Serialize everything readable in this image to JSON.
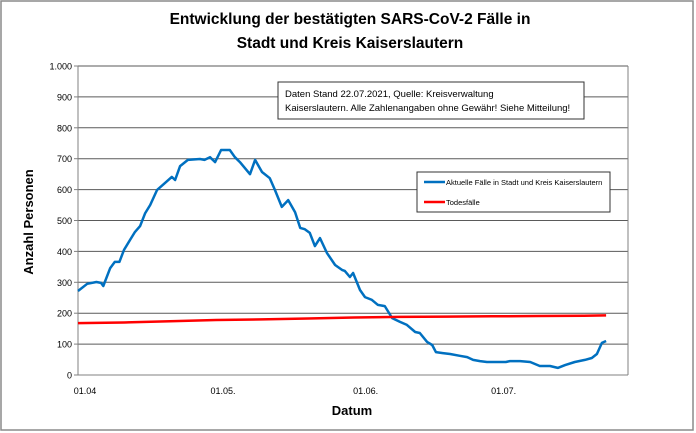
{
  "chart_data": {
    "type": "line",
    "title_line1": "Entwicklung der bestätigten SARS-CoV-2 Fälle in",
    "title_line2": "Stadt und Kreis Kaiserslautern",
    "xlabel": "Datum",
    "ylabel": "Anzahl Personen",
    "ylim": [
      0,
      1000
    ],
    "xlim_days": [
      0,
      119
    ],
    "yticks": [
      {
        "value": 0,
        "label": "0"
      },
      {
        "value": 100,
        "label": "100"
      },
      {
        "value": 200,
        "label": "200"
      },
      {
        "value": 300,
        "label": "300"
      },
      {
        "value": 400,
        "label": "400"
      },
      {
        "value": 500,
        "label": "500"
      },
      {
        "value": 600,
        "label": "600"
      },
      {
        "value": 700,
        "label": "700"
      },
      {
        "value": 800,
        "label": "800"
      },
      {
        "value": 900,
        "label": "900"
      },
      {
        "value": 1000,
        "label": "1.000"
      }
    ],
    "xticks": [
      {
        "day": 0,
        "label": "01.04"
      },
      {
        "day": 30,
        "label": "01.05."
      },
      {
        "day": 61,
        "label": "01.06."
      },
      {
        "day": 91,
        "label": "01.07."
      }
    ],
    "grid": true,
    "legend_position": "right-middle",
    "annotation_line1": "Daten Stand 22.07.2021, Quelle: Kreisverwaltung",
    "annotation_line2": "Kaiserslautern. Alle Zahlenangaben ohne Gewähr! Siehe Mitteilung!",
    "series": [
      {
        "name": "Aktuelle Fälle in Stadt und Kreis Kaiserslautern",
        "color": "#0070C0",
        "points": [
          [
            0,
            272
          ],
          [
            2,
            295
          ],
          [
            4,
            301
          ],
          [
            5,
            298
          ],
          [
            5.5,
            288
          ],
          [
            7,
            346
          ],
          [
            8,
            366
          ],
          [
            9,
            366
          ],
          [
            10,
            405
          ],
          [
            11.3,
            437
          ],
          [
            12.4,
            463
          ],
          [
            13.5,
            482
          ],
          [
            14.6,
            524
          ],
          [
            15.7,
            550
          ],
          [
            17.2,
            599
          ],
          [
            18.9,
            621
          ],
          [
            20.4,
            641
          ],
          [
            21.1,
            631
          ],
          [
            22.2,
            676
          ],
          [
            23.9,
            696
          ],
          [
            26.5,
            699
          ],
          [
            27.5,
            696
          ],
          [
            28.7,
            705
          ],
          [
            29.8,
            689
          ],
          [
            31.1,
            728
          ],
          [
            33,
            728
          ],
          [
            34.1,
            705
          ],
          [
            35.2,
            689
          ],
          [
            37.4,
            650
          ],
          [
            38.5,
            696
          ],
          [
            40,
            657
          ],
          [
            41.7,
            637
          ],
          [
            42.8,
            599
          ],
          [
            44.3,
            544
          ],
          [
            45.7,
            566
          ],
          [
            47.2,
            527
          ],
          [
            48.3,
            476
          ],
          [
            49.3,
            472
          ],
          [
            50.4,
            460
          ],
          [
            51.5,
            417
          ],
          [
            52.6,
            443
          ],
          [
            54.1,
            395
          ],
          [
            55.9,
            356
          ],
          [
            57.4,
            340
          ],
          [
            58,
            337
          ],
          [
            59.1,
            317
          ],
          [
            59.8,
            330
          ],
          [
            61.3,
            275
          ],
          [
            62.4,
            252
          ],
          [
            63.9,
            243
          ],
          [
            65.2,
            227
          ],
          [
            66.7,
            223
          ],
          [
            68.3,
            184
          ],
          [
            70,
            172
          ],
          [
            71.5,
            162
          ],
          [
            73.3,
            139
          ],
          [
            74.3,
            136
          ],
          [
            75.9,
            107
          ],
          [
            77,
            97
          ],
          [
            77.8,
            74
          ],
          [
            79.3,
            71
          ],
          [
            80.9,
            68
          ],
          [
            83,
            62
          ],
          [
            84.6,
            58
          ],
          [
            85.9,
            49
          ],
          [
            87.4,
            45
          ],
          [
            88.9,
            42
          ],
          [
            90.7,
            42
          ],
          [
            93,
            42
          ],
          [
            93.9,
            45
          ],
          [
            96.1,
            45
          ],
          [
            98.3,
            42
          ],
          [
            100.4,
            29
          ],
          [
            102.6,
            29
          ],
          [
            104.3,
            23
          ],
          [
            105.9,
            32
          ],
          [
            108,
            42
          ],
          [
            110.2,
            49
          ],
          [
            111.7,
            55
          ],
          [
            112.8,
            68
          ],
          [
            113.9,
            104
          ],
          [
            114.8,
            110
          ]
        ]
      },
      {
        "name": "Todesfälle",
        "color": "#FF0000",
        "points": [
          [
            0,
            168
          ],
          [
            10,
            170
          ],
          [
            20,
            174
          ],
          [
            30,
            178
          ],
          [
            40,
            180
          ],
          [
            50,
            183
          ],
          [
            60,
            186
          ],
          [
            70,
            188
          ],
          [
            80,
            189
          ],
          [
            90,
            190
          ],
          [
            100,
            191
          ],
          [
            110,
            192
          ],
          [
            114.8,
            193
          ]
        ]
      }
    ]
  }
}
